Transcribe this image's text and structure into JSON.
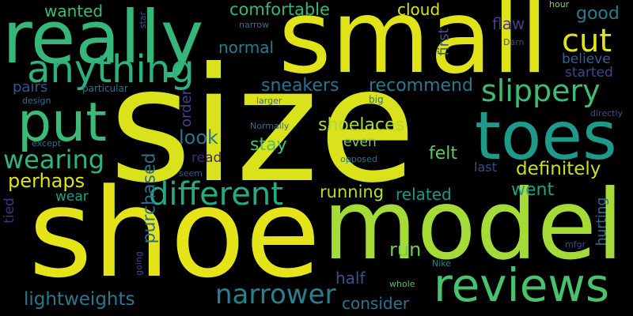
{
  "words": [
    {
      "text": "size",
      "color": "#d9e21a"
    },
    {
      "text": "shoe",
      "color": "#e5e419"
    },
    {
      "text": "small",
      "color": "#dfe318"
    },
    {
      "text": "model",
      "color": "#a5db36"
    },
    {
      "text": "really",
      "color": "#35b779"
    },
    {
      "text": "toes",
      "color": "#1f9a8a"
    },
    {
      "text": "reviews",
      "color": "#4ac16d"
    },
    {
      "text": "put",
      "color": "#3bbb75"
    },
    {
      "text": "anything",
      "color": "#2db27d"
    },
    {
      "text": "different",
      "color": "#25ab82"
    },
    {
      "text": "slippery",
      "color": "#3dbc74"
    },
    {
      "text": "cut",
      "color": "#e2e418"
    },
    {
      "text": "narrower",
      "color": "#27808e"
    },
    {
      "text": "wearing",
      "color": "#2fb47c"
    },
    {
      "text": "definitely",
      "color": "#c8e020"
    },
    {
      "text": "comfortable",
      "color": "#35b779"
    },
    {
      "text": "lightweights",
      "color": "#2a788e"
    },
    {
      "text": "perhaps",
      "color": "#dde318"
    },
    {
      "text": "running",
      "color": "#b5de2b"
    },
    {
      "text": "sneakers",
      "color": "#2c728e"
    },
    {
      "text": "recommend",
      "color": "#2a788e"
    },
    {
      "text": "shoelaces",
      "color": "#addc30"
    },
    {
      "text": "good",
      "color": "#287c8e"
    },
    {
      "text": "cloud",
      "color": "#d8e219"
    },
    {
      "text": "wanted",
      "color": "#3bbb75"
    },
    {
      "text": "stay",
      "color": "#4ec36b"
    },
    {
      "text": "look",
      "color": "#2c728e"
    },
    {
      "text": "felt",
      "color": "#5ec962"
    },
    {
      "text": "went",
      "color": "#20a386"
    },
    {
      "text": "related",
      "color": "#1f968b"
    },
    {
      "text": "consider",
      "color": "#2c728e"
    },
    {
      "text": "half",
      "color": "#3b528b"
    },
    {
      "text": "run",
      "color": "#6ece58"
    },
    {
      "text": "purchased",
      "color": "#2d708e"
    },
    {
      "text": "normal",
      "color": "#287d8e"
    },
    {
      "text": "flaw",
      "color": "#433e85"
    },
    {
      "text": "believe",
      "color": "#34618d"
    },
    {
      "text": "started",
      "color": "#3e4989"
    },
    {
      "text": "order",
      "color": "#414487"
    },
    {
      "text": "pairs",
      "color": "#3b528b"
    },
    {
      "text": "even",
      "color": "#7ad151"
    },
    {
      "text": "read",
      "color": "#482878"
    },
    {
      "text": "last",
      "color": "#3e4a89"
    },
    {
      "text": "wear",
      "color": "#1fa187"
    },
    {
      "text": "tied",
      "color": "#46327e"
    },
    {
      "text": "first",
      "color": "#3b528b"
    },
    {
      "text": "hurting",
      "color": "#2e6e8e"
    },
    {
      "text": "particular",
      "color": "#2c728e"
    },
    {
      "text": "design",
      "color": "#2d708e"
    },
    {
      "text": "except",
      "color": "#2f6b8e"
    },
    {
      "text": "larger",
      "color": "#2e6f8e"
    },
    {
      "text": "Normally",
      "color": "#31688e"
    },
    {
      "text": "big",
      "color": "#2d718e"
    },
    {
      "text": "opposed",
      "color": "#2a768e"
    },
    {
      "text": "seem",
      "color": "#38588c"
    },
    {
      "text": "going",
      "color": "#3f4788"
    },
    {
      "text": "whole",
      "color": "#4ac16d"
    },
    {
      "text": "Nike",
      "color": "#27808e"
    },
    {
      "text": "mfgr",
      "color": "#3e4989"
    },
    {
      "text": "star",
      "color": "#3b528b"
    },
    {
      "text": "narrow",
      "color": "#2d708e"
    },
    {
      "text": "Darn",
      "color": "#3e4989"
    },
    {
      "text": "hour",
      "color": "#8fd744"
    },
    {
      "text": "directly",
      "color": "#3b528b"
    }
  ]
}
